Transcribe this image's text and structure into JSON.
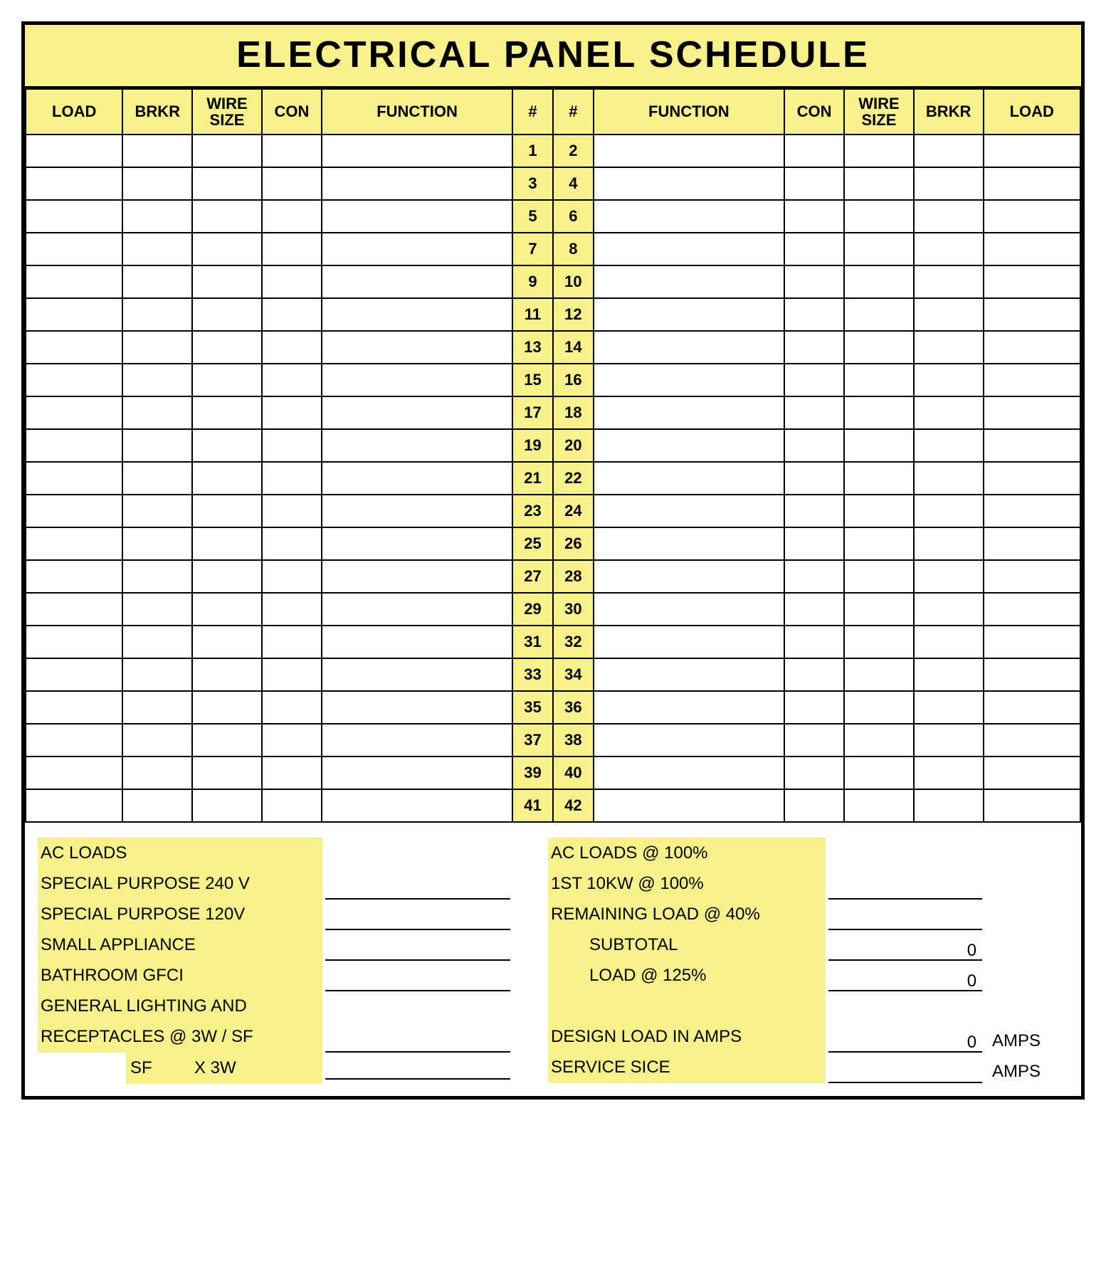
{
  "colors": {
    "accent": "#f6f189",
    "border": "#000000",
    "background": "#ffffff",
    "text": "#000000"
  },
  "title": "ELECTRICAL PANEL SCHEDULE",
  "headers": {
    "load_l": "LOAD",
    "brkr_l": "BRKR",
    "wire_l": "WIRE\nSIZE",
    "con_l": "CON",
    "func_l": "FUNCTION",
    "num_l": "#",
    "num_r": "#",
    "func_r": "FUNCTION",
    "con_r": "CON",
    "wire_r": "WIRE\nSIZE",
    "brkr_r": "BRKR",
    "load_r": "LOAD"
  },
  "circuit_rows": 21,
  "rows": [
    {
      "odd": "1",
      "even": "2"
    },
    {
      "odd": "3",
      "even": "4"
    },
    {
      "odd": "5",
      "even": "6"
    },
    {
      "odd": "7",
      "even": "8"
    },
    {
      "odd": "9",
      "even": "10"
    },
    {
      "odd": "11",
      "even": "12"
    },
    {
      "odd": "13",
      "even": "14"
    },
    {
      "odd": "15",
      "even": "16"
    },
    {
      "odd": "17",
      "even": "18"
    },
    {
      "odd": "19",
      "even": "20"
    },
    {
      "odd": "21",
      "even": "22"
    },
    {
      "odd": "23",
      "even": "24"
    },
    {
      "odd": "25",
      "even": "26"
    },
    {
      "odd": "27",
      "even": "28"
    },
    {
      "odd": "29",
      "even": "30"
    },
    {
      "odd": "31",
      "even": "32"
    },
    {
      "odd": "33",
      "even": "34"
    },
    {
      "odd": "35",
      "even": "36"
    },
    {
      "odd": "37",
      "even": "38"
    },
    {
      "odd": "39",
      "even": "40"
    },
    {
      "odd": "41",
      "even": "42"
    }
  ],
  "summary": {
    "left": {
      "ac_loads": "AC LOADS",
      "sp240": "SPECIAL PURPOSE 240 V",
      "sp120": "SPECIAL PURPOSE 120V",
      "small_app": "SMALL APPLIANCE",
      "bath_gfci": "BATHROOM GFCI",
      "gen_light": "GENERAL LIGHTING AND",
      "recept": "RECEPTACLES @ 3W / SF",
      "sf": "SF",
      "x3w": "X 3W"
    },
    "right": {
      "ac100": "AC LOADS @ 100%",
      "first10": "1ST 10KW @ 100%",
      "remain40": "REMAINING LOAD @ 40%",
      "subtotal": "SUBTOTAL",
      "subtotal_val": "0",
      "load125": "LOAD @ 125%",
      "load125_val": "0",
      "design_amps": "DESIGN LOAD IN AMPS",
      "design_amps_val": "0",
      "service_size": "SERVICE SICE",
      "unit_amps": "AMPS"
    }
  }
}
